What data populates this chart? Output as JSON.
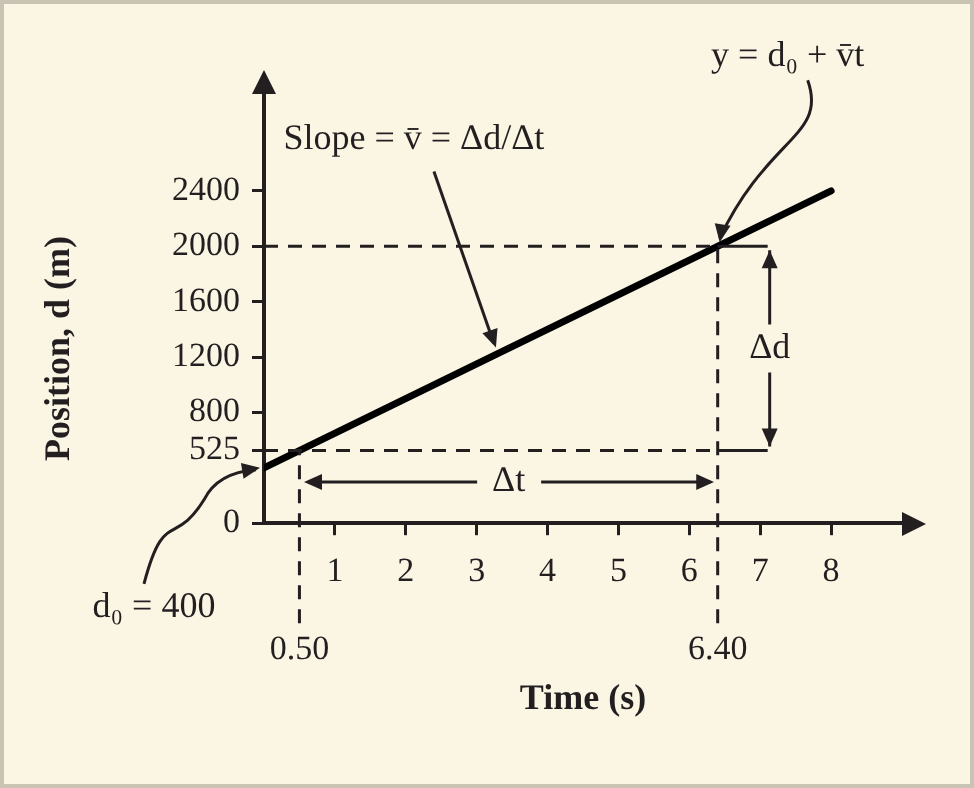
{
  "chart_data": {
    "type": "line",
    "xlabel": "Time (s)",
    "ylabel": "Position, d (m)",
    "series": [
      {
        "color": "#000000",
        "x": [
          0,
          8
        ],
        "values": [
          400,
          2400
        ]
      }
    ],
    "xlim": [
      0,
      9
    ],
    "ylim": [
      0,
      3100
    ],
    "xticks": [
      1,
      2,
      3,
      4,
      5,
      6,
      7,
      8
    ],
    "yticks": [
      {
        "value": 0,
        "label": "0"
      },
      525,
      800,
      1200,
      1600,
      2000,
      2400
    ],
    "ref_lines": [
      {
        "axis": "x",
        "value": 0.5,
        "label": "0.50",
        "line_style": "dashed"
      },
      {
        "axis": "x",
        "value": 6.4,
        "label": "6.40",
        "line_style": "dashed"
      },
      {
        "axis": "y",
        "value": 525,
        "line_style": "dashed"
      },
      {
        "axis": "y",
        "value": 2000,
        "line_style": "dashed"
      }
    ],
    "annotations": [
      {
        "text": "Slope = v̄ = Δd/Δt",
        "x": 3.3,
        "y": 1225
      },
      {
        "text": "y = d₀ + v̄t",
        "x": 6.4,
        "y": 2000
      },
      {
        "text": "Δt",
        "x": 0.5,
        "y": 300
      },
      "Δd",
      {
        "text": "d₀ = 400",
        "x": 0,
        "y": 400
      }
    ],
    "grid": false,
    "legend": false,
    "marker": "none",
    "line_style": "solid"
  }
}
